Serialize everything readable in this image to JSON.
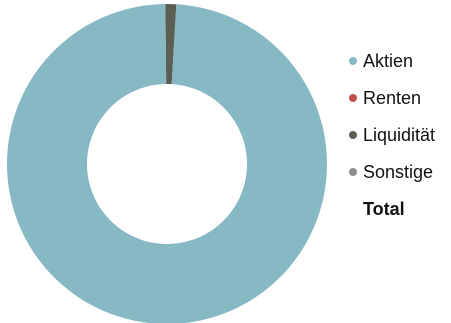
{
  "chart_data": {
    "type": "pie",
    "style": "donut",
    "categories": [
      "Aktien",
      "Renten",
      "Liquidität",
      "Sonstige"
    ],
    "values": [
      98.9,
      0.0,
      1.1,
      0.0
    ],
    "colors": [
      "#86b9c4",
      "#c0504d",
      "#5b5e52",
      "#8c8c8c"
    ],
    "legend": {
      "position": "right",
      "total_label": "Total"
    },
    "title": ""
  }
}
